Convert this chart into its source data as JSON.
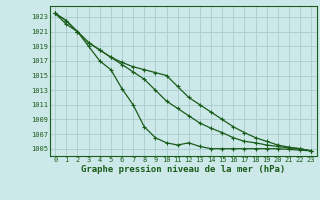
{
  "title": "Graphe pression niveau de la mer (hPa)",
  "background_color": "#cce8e8",
  "grid_color": "#aacccc",
  "line_color": "#1a5c1a",
  "xlim": [
    -0.5,
    23.5
  ],
  "ylim": [
    1004.0,
    1024.5
  ],
  "yticks": [
    1005,
    1007,
    1009,
    1011,
    1013,
    1015,
    1017,
    1019,
    1021,
    1023
  ],
  "xticks": [
    0,
    1,
    2,
    3,
    4,
    5,
    6,
    7,
    8,
    9,
    10,
    11,
    12,
    13,
    14,
    15,
    16,
    17,
    18,
    19,
    20,
    21,
    22,
    23
  ],
  "series": [
    [
      1023.5,
      1022.0,
      1021.0,
      1019.0,
      1017.0,
      1015.8,
      1013.2,
      1011.0,
      1008.0,
      1006.5,
      1005.8,
      1005.5,
      1005.8,
      1005.3,
      1005.0,
      1005.0,
      1005.0,
      1005.0,
      1005.0,
      1005.0,
      1005.0,
      1004.9,
      1004.8,
      1004.7
    ],
    [
      1023.5,
      1022.5,
      1021.0,
      1019.5,
      1018.5,
      1017.5,
      1016.5,
      1015.5,
      1014.5,
      1013.0,
      1011.5,
      1010.5,
      1009.5,
      1008.5,
      1007.8,
      1007.2,
      1006.5,
      1006.0,
      1005.8,
      1005.5,
      1005.3,
      1005.1,
      1005.0,
      1004.7
    ],
    [
      1023.5,
      1022.5,
      1021.0,
      1019.5,
      1018.5,
      1017.5,
      1016.8,
      1016.2,
      1015.8,
      1015.4,
      1015.0,
      1013.5,
      1012.0,
      1011.0,
      1010.0,
      1009.0,
      1008.0,
      1007.2,
      1006.5,
      1006.0,
      1005.5,
      1005.2,
      1005.0,
      1004.7
    ]
  ]
}
